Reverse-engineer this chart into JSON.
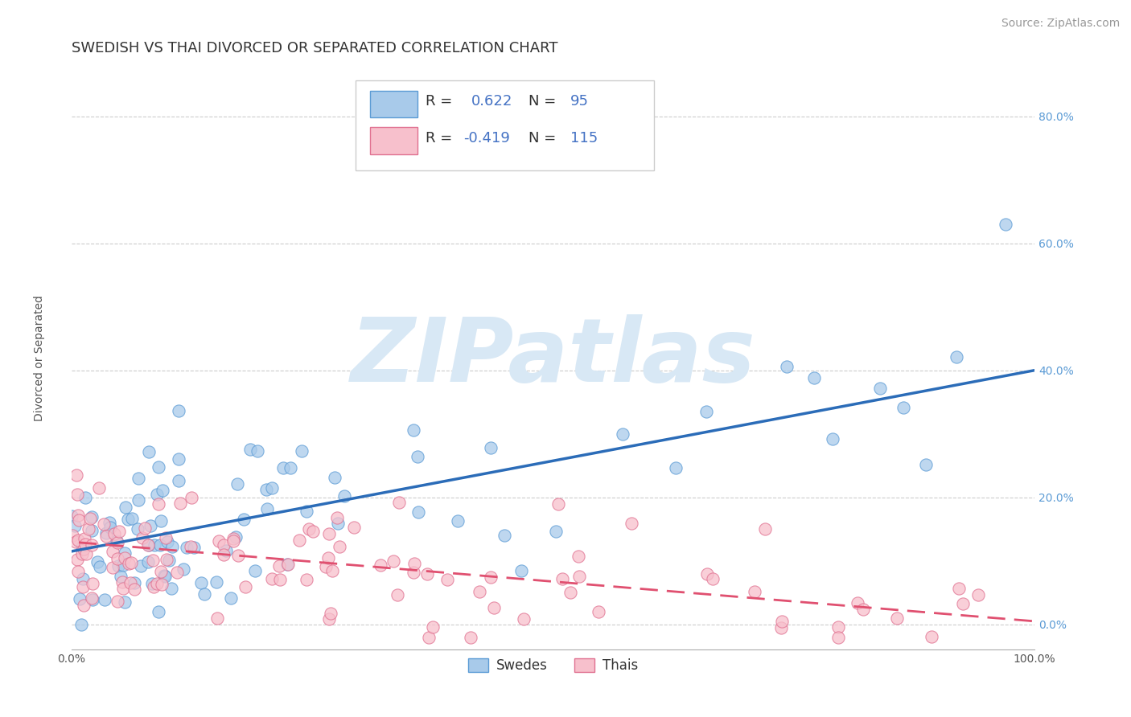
{
  "title": "SWEDISH VS THAI DIVORCED OR SEPARATED CORRELATION CHART",
  "source": "Source: ZipAtlas.com",
  "ylabel": "Divorced or Separated",
  "xlim": [
    0.0,
    1.0
  ],
  "ylim": [
    -0.04,
    0.88
  ],
  "xticks": [
    0.0,
    0.1,
    0.2,
    0.3,
    0.4,
    0.5,
    0.6,
    0.7,
    0.8,
    0.9,
    1.0
  ],
  "xtick_labels": [
    "0.0%",
    "",
    "",
    "",
    "",
    "",
    "",
    "",
    "",
    "",
    "100.0%"
  ],
  "yticks": [
    0.0,
    0.2,
    0.4,
    0.6,
    0.8
  ],
  "ytick_labels": [
    "0.0%",
    "20.0%",
    "40.0%",
    "60.0%",
    "80.0%"
  ],
  "blue_color": "#A8CAEA",
  "blue_edge_color": "#5B9BD5",
  "pink_color": "#F7C0CC",
  "pink_edge_color": "#E07090",
  "blue_line_color": "#2B6CB8",
  "pink_line_color": "#E05070",
  "grid_color": "#CCCCCC",
  "watermark_color": "#D8E8F5",
  "watermark_text": "ZIPatlas",
  "legend_label1": "Swedes",
  "legend_label2": "Thais",
  "R_swedish": 0.622,
  "N_swedish": 95,
  "R_thai": -0.419,
  "N_thai": 115,
  "blue_intercept": 0.115,
  "blue_slope": 0.285,
  "pink_intercept": 0.13,
  "pink_slope": -0.125,
  "seed": 7,
  "title_fontsize": 13,
  "axis_label_fontsize": 10,
  "tick_fontsize": 10,
  "source_fontsize": 10,
  "legend_value_color": "#4472C4",
  "legend_text_color": "#333333",
  "tick_color": "#5B9BD5"
}
